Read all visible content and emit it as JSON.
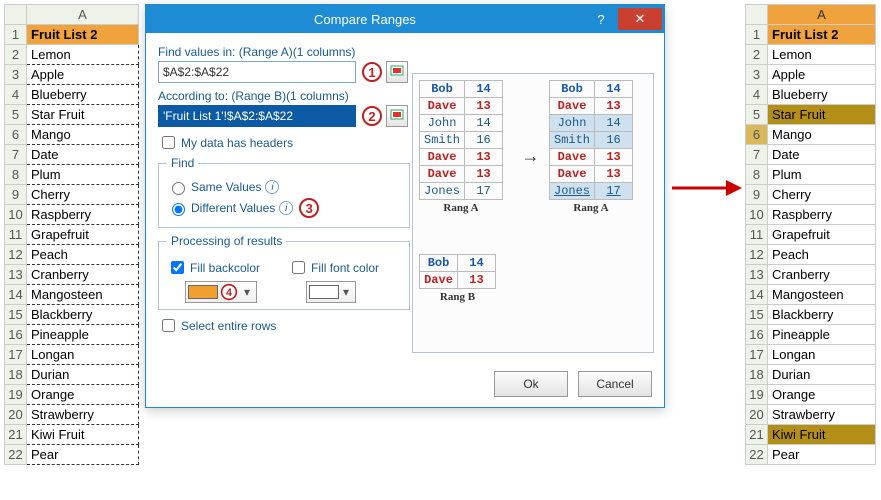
{
  "left_sheet": {
    "col_letter": "A",
    "header": "Fruit  List 2",
    "rows": [
      "Lemon",
      "Apple",
      "Blueberry",
      "Star Fruit",
      "Mango",
      "Date",
      "Plum",
      "Cherry",
      "Raspberry",
      "Grapefruit",
      "Peach",
      "Cranberry",
      "Mangosteen",
      "Blackberry",
      "Pineapple",
      "Longan",
      "Durian",
      "Orange",
      "Strawberry",
      "Kiwi Fruit",
      "Pear"
    ],
    "highlight": []
  },
  "right_sheet": {
    "col_letter": "A",
    "header": "Fruit  List 2",
    "rows": [
      "Lemon",
      "Apple",
      "Blueberry",
      "Star Fruit",
      "Mango",
      "Date",
      "Plum",
      "Cherry",
      "Raspberry",
      "Grapefruit",
      "Peach",
      "Cranberry",
      "Mangosteen",
      "Blackberry",
      "Pineapple",
      "Longan",
      "Durian",
      "Orange",
      "Strawberry",
      "Kiwi Fruit",
      "Pear"
    ],
    "highlight": [
      3,
      19
    ],
    "active_row": 4
  },
  "dialog": {
    "title": "Compare Ranges",
    "help_glyph": "?",
    "close_glyph": "✕",
    "label_rangeA": "Find values in: (Range A)(1 columns)",
    "rangeA_value": "$A$2:$A$22",
    "label_rangeB": "According to: (Range B)(1 columns)",
    "rangeB_value": "'Fruit List 1'!$A$2:$A$22",
    "chk_headers": "My data has headers",
    "chk_headers_checked": false,
    "fs_find": "Find",
    "radio_same": "Same Values",
    "radio_diff": "Different Values",
    "radio_selected": "diff",
    "fs_proc": "Processing of results",
    "chk_backcolor": "Fill backcolor",
    "chk_backcolor_checked": true,
    "chk_fontcolor": "Fill font color",
    "chk_fontcolor_checked": false,
    "swatch_back": "#f0a030",
    "swatch_font": "#ffffff",
    "chk_entire": "Select entire rows",
    "chk_entire_checked": false,
    "btn_ok": "Ok",
    "btn_cancel": "Cancel",
    "ann": {
      "1": "1",
      "2": "2",
      "3": "3",
      "4": "4"
    }
  },
  "preview": {
    "rangA": {
      "label": "Rang A",
      "rows": [
        {
          "k": "Bob",
          "v": "14",
          "style": "h"
        },
        {
          "k": "Dave",
          "v": "13",
          "style": "b"
        },
        {
          "k": "John",
          "v": "14",
          "style": ""
        },
        {
          "k": "Smith",
          "v": "16",
          "style": ""
        },
        {
          "k": "Dave",
          "v": "13",
          "style": "b"
        },
        {
          "k": "Dave",
          "v": "13",
          "style": "b"
        },
        {
          "k": "Jones",
          "v": "17",
          "style": ""
        }
      ]
    },
    "rangA2": {
      "label": "Rang A",
      "rows": [
        {
          "k": "Bob",
          "v": "14",
          "style": "h",
          "sel": false
        },
        {
          "k": "Dave",
          "v": "13",
          "style": "b",
          "sel": false
        },
        {
          "k": "John",
          "v": "14",
          "style": "",
          "sel": true
        },
        {
          "k": "Smith",
          "v": "16",
          "style": "",
          "sel": true
        },
        {
          "k": "Dave",
          "v": "13",
          "style": "b",
          "sel": false
        },
        {
          "k": "Dave",
          "v": "13",
          "style": "b",
          "sel": false
        },
        {
          "k": "Jones",
          "v": "17",
          "style": "",
          "sel": true,
          "u": true
        }
      ]
    },
    "rangB": {
      "label": "Rang B",
      "rows": [
        {
          "k": "Bob",
          "v": "14",
          "style": "h"
        },
        {
          "k": "Dave",
          "v": "13",
          "style": "b"
        }
      ]
    },
    "arrow": "→"
  },
  "colors": {
    "titlebar": "#1e8bd5",
    "close": "#c94030",
    "header_cell": "#f0a23c",
    "highlight": "#b48f18",
    "dialog_text": "#1a5a8f"
  }
}
